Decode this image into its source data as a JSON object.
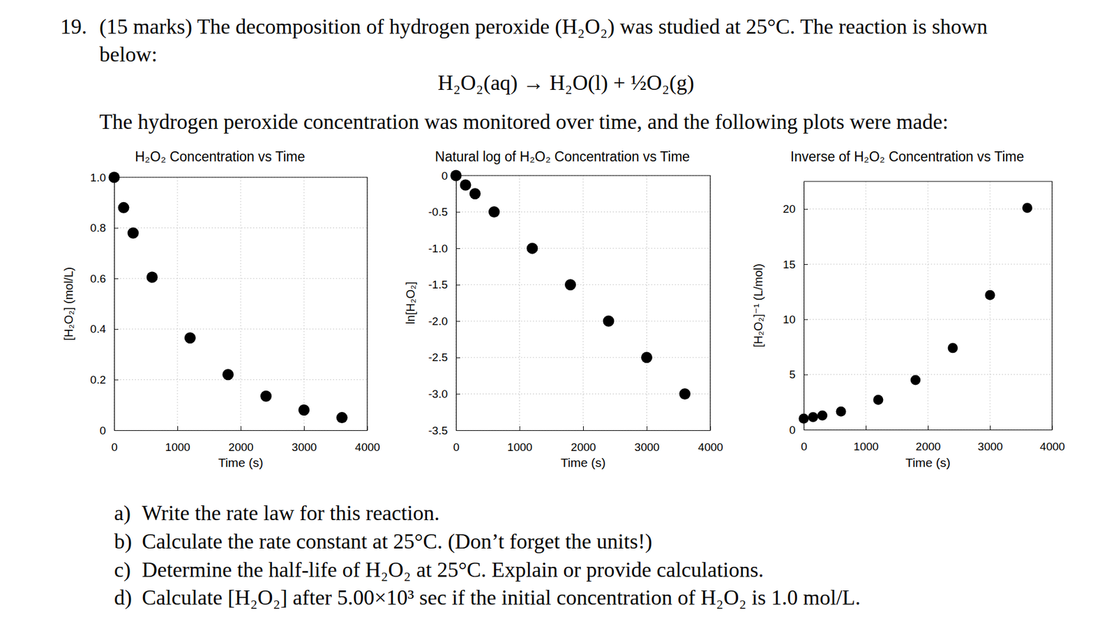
{
  "question": {
    "number": "19.",
    "lines": [
      "(15 marks) The decomposition of hydrogen peroxide (H₂O₂) was studied at 25°C. The reaction is shown",
      "below:"
    ],
    "equation": "H₂O₂(aq) → H₂O(l) + ½O₂(g)",
    "intro": "The hydrogen peroxide concentration was monitored over time, and the following plots were made:",
    "parts": [
      {
        "label": "a)",
        "text": "Write the rate law for this reaction."
      },
      {
        "label": "b)",
        "text": "Calculate the rate constant at 25°C. (Don’t forget the units!)"
      },
      {
        "label": "c)",
        "text": "Determine the half-life of H₂O₂ at 25°C. Explain or provide calculations."
      },
      {
        "label": "d)",
        "text": "Calculate [H₂O₂] after 5.00×10³ sec if the initial concentration of H₂O₂ is 1.0 mol/L."
      }
    ]
  },
  "chart_data": [
    {
      "type": "scatter",
      "title": "H₂O₂ Concentration vs Time",
      "x_label": "Time (s)",
      "y_label": "[H₂O₂] (mol/L)",
      "x": [
        0,
        150,
        300,
        600,
        1200,
        1800,
        2400,
        3000,
        3600
      ],
      "values": [
        1.0,
        0.88,
        0.78,
        0.605,
        0.365,
        0.22,
        0.135,
        0.08,
        0.05
      ],
      "color": "#000000",
      "marker": "circle",
      "xlim": [
        0,
        4000
      ],
      "xticks": [
        0,
        1000,
        2000,
        3000,
        4000
      ],
      "ylim": [
        0,
        1.0
      ],
      "yticks": [
        0,
        0.2,
        0.4,
        0.6,
        0.8,
        {
          "value": 1.0,
          "label": "1.0"
        }
      ],
      "grid": true
    },
    {
      "type": "scatter",
      "title": "Natural log of H₂O₂ Concentration vs Time",
      "x_label": "Time (s)",
      "y_label": "ln[H₂O₂]",
      "x": [
        0,
        150,
        300,
        600,
        1200,
        1800,
        2400,
        3000,
        3600
      ],
      "values": [
        0,
        -0.13,
        -0.25,
        -0.5,
        -1.0,
        -1.5,
        -2.0,
        -2.5,
        -3.0
      ],
      "color": "#000000",
      "marker": "circle",
      "xlim": [
        0,
        4000
      ],
      "xticks": [
        0,
        1000,
        2000,
        3000,
        4000
      ],
      "ylim": [
        -3.5,
        0
      ],
      "yticks": [
        -3.5,
        {
          "value": -3.0,
          "label": "-3.0"
        },
        -2.5,
        {
          "value": -2.0,
          "label": "-2.0"
        },
        -1.5,
        {
          "value": -1.0,
          "label": "-1.0"
        },
        -0.5,
        0
      ],
      "grid": true
    },
    {
      "type": "scatter",
      "title": "Inverse of H₂O₂ Concentration vs Time",
      "x_label": "Time (s)",
      "y_label": "[H₂O₂]⁻¹ (L/mol)",
      "x": [
        0,
        150,
        300,
        600,
        1200,
        1800,
        2400,
        3000,
        3600
      ],
      "values": [
        1.0,
        1.14,
        1.28,
        1.65,
        2.7,
        4.5,
        7.4,
        12.2,
        20.1
      ],
      "color": "#000000",
      "marker": "circle",
      "xlim": [
        0,
        4000
      ],
      "xticks": [
        0,
        1000,
        2000,
        3000,
        4000
      ],
      "ylim": [
        0,
        22.5
      ],
      "yticks": [
        0,
        5,
        10,
        15,
        20
      ],
      "grid": true
    }
  ]
}
